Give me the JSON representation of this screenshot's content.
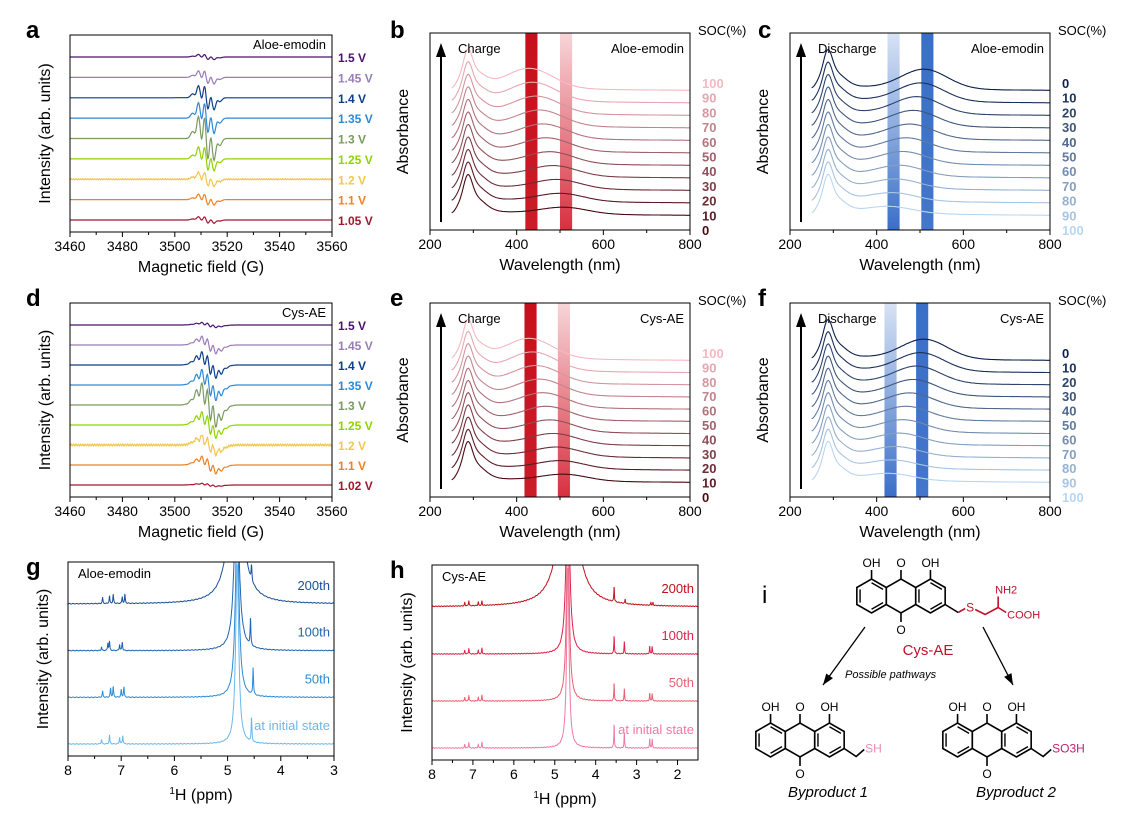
{
  "chart_data": [
    {
      "panel": "a",
      "type": "line",
      "subtype": "epr-stack",
      "title": "Aloe-emodin",
      "xlabel": "Magnetic field (G)",
      "ylabel": "Intensity (arb. units)",
      "xlim": [
        3460,
        3560
      ],
      "xticks": [
        "3460",
        "3480",
        "3500",
        "3520",
        "3540",
        "3560"
      ],
      "center_field": 3512,
      "hyperfine_lines": 5,
      "line_spacing_G": 2.2,
      "series": [
        {
          "name": "1.5 V",
          "color": "#4b136f",
          "amplitude": 0.12
        },
        {
          "name": "1.45 V",
          "color": "#9a7cb8",
          "amplitude": 0.3
        },
        {
          "name": "1.4 V",
          "color": "#0d3f8a",
          "amplitude": 0.55
        },
        {
          "name": "1.35 V",
          "color": "#2b8ad8",
          "amplitude": 0.7
        },
        {
          "name": "1.3 V",
          "color": "#7a9a60",
          "amplitude": 1.0
        },
        {
          "name": "1.25 V",
          "color": "#8fd400",
          "amplitude": 0.55
        },
        {
          "name": "1.2 V",
          "color": "#f0c850",
          "amplitude": 0.35
        },
        {
          "name": "1.1 V",
          "color": "#f08020",
          "amplitude": 0.25
        },
        {
          "name": "1.05 V",
          "color": "#a01830",
          "amplitude": 0.15
        }
      ]
    },
    {
      "panel": "b",
      "type": "line",
      "subtype": "uv-stack",
      "title": "Aloe-emodin",
      "annotation": "Charge",
      "legend_title": "SOC(%)",
      "xlabel": "Wavelength (nm)",
      "ylabel": "Absorbance",
      "xlim": [
        200,
        800
      ],
      "xticks": [
        "200",
        "400",
        "600",
        "800"
      ],
      "highlight_bands": [
        {
          "center_nm": 434,
          "width_nm": 28,
          "color": "#c8101c",
          "style": "solid"
        },
        {
          "center_nm": 514,
          "width_nm": 28,
          "color": "#d83040",
          "style": "fade"
        }
      ],
      "color_top": "#f6b9c2",
      "color_bottom": "#4a0a14",
      "soc": [
        "100",
        "90",
        "80",
        "70",
        "60",
        "50",
        "40",
        "30",
        "20",
        "10",
        "0"
      ],
      "soc_high_at": "top"
    },
    {
      "panel": "c",
      "type": "line",
      "subtype": "uv-stack",
      "title": "Aloe-emodin",
      "annotation": "Discharge",
      "legend_title": "SOC(%)",
      "xlabel": "Wavelength (nm)",
      "ylabel": "Absorbance",
      "xlim": [
        200,
        800
      ],
      "xticks": [
        "200",
        "400",
        "600",
        "800"
      ],
      "highlight_bands": [
        {
          "center_nm": 439,
          "width_nm": 28,
          "color": "#3a6fc8",
          "style": "fade"
        },
        {
          "center_nm": 517,
          "width_nm": 28,
          "color": "#3a6fc8",
          "style": "solid"
        }
      ],
      "color_top": "#0a1f4a",
      "color_bottom": "#b8d6f2",
      "soc": [
        "0",
        "10",
        "20",
        "30",
        "40",
        "50",
        "60",
        "70",
        "80",
        "90",
        "100"
      ],
      "soc_high_at": "bottom"
    },
    {
      "panel": "d",
      "type": "line",
      "subtype": "epr-stack",
      "title": "Cys-AE",
      "xlabel": "Magnetic field (G)",
      "ylabel": "Intensity (arb. units)",
      "xlim": [
        3460,
        3560
      ],
      "xticks": [
        "3460",
        "3480",
        "3500",
        "3520",
        "3540",
        "3560"
      ],
      "center_field": 3513,
      "hyperfine_lines": 9,
      "line_spacing_G": 2.0,
      "series": [
        {
          "name": "1.5 V",
          "color": "#4b136f",
          "amplitude": 0.12
        },
        {
          "name": "1.45 V",
          "color": "#9a7cb8",
          "amplitude": 0.4
        },
        {
          "name": "1.4 V",
          "color": "#0d3f8a",
          "amplitude": 0.6
        },
        {
          "name": "1.35 V",
          "color": "#2b8ad8",
          "amplitude": 0.7
        },
        {
          "name": "1.3 V",
          "color": "#7a9a60",
          "amplitude": 1.0
        },
        {
          "name": "1.25 V",
          "color": "#8fd400",
          "amplitude": 0.6
        },
        {
          "name": "1.2 V",
          "color": "#f0c850",
          "amplitude": 0.5
        },
        {
          "name": "1.1 V",
          "color": "#f08020",
          "amplitude": 0.4
        },
        {
          "name": "1.02 V",
          "color": "#a01830",
          "amplitude": 0.08
        }
      ]
    },
    {
      "panel": "e",
      "type": "line",
      "subtype": "uv-stack",
      "title": "Cys-AE",
      "annotation": "Charge",
      "legend_title": "SOC(%)",
      "xlabel": "Wavelength (nm)",
      "ylabel": "Absorbance",
      "xlim": [
        200,
        800
      ],
      "xticks": [
        "200",
        "400",
        "600",
        "800"
      ],
      "highlight_bands": [
        {
          "center_nm": 432,
          "width_nm": 28,
          "color": "#c8101c",
          "style": "solid"
        },
        {
          "center_nm": 509,
          "width_nm": 28,
          "color": "#d83040",
          "style": "fade"
        }
      ],
      "color_top": "#f6b9c2",
      "color_bottom": "#4a0a14",
      "soc": [
        "100",
        "90",
        "80",
        "70",
        "60",
        "50",
        "40",
        "30",
        "20",
        "10",
        "0"
      ],
      "soc_high_at": "top"
    },
    {
      "panel": "f",
      "type": "line",
      "subtype": "uv-stack",
      "title": "Cys-AE",
      "annotation": "Discharge",
      "legend_title": "SOC(%)",
      "xlabel": "Wavelength (nm)",
      "ylabel": "Absorbance",
      "xlim": [
        200,
        800
      ],
      "xticks": [
        "200",
        "400",
        "600",
        "800"
      ],
      "highlight_bands": [
        {
          "center_nm": 432,
          "width_nm": 28,
          "color": "#3a6fc8",
          "style": "fade"
        },
        {
          "center_nm": 505,
          "width_nm": 28,
          "color": "#3a6fc8",
          "style": "solid"
        }
      ],
      "color_top": "#0a1f4a",
      "color_bottom": "#b8d6f2",
      "soc": [
        "0",
        "10",
        "20",
        "30",
        "40",
        "50",
        "60",
        "70",
        "80",
        "90",
        "100"
      ],
      "soc_high_at": "bottom"
    },
    {
      "panel": "g",
      "type": "line",
      "subtype": "nmr-stack",
      "title": "Aloe-emodin",
      "xlabel_sup": "1",
      "xlabel": "H (ppm)",
      "ylabel": "Intensity (arb. units)",
      "xlim": [
        8,
        3
      ],
      "xticks": [
        "8",
        "7",
        "6",
        "5",
        "4",
        "3"
      ],
      "series": [
        {
          "name": "200th",
          "color": "#1a4f9a",
          "peaks": [
            [
              7.35,
              0.2
            ],
            [
              7.22,
              0.25
            ],
            [
              7.15,
              0.3
            ],
            [
              6.98,
              0.22
            ],
            [
              6.93,
              0.3
            ],
            [
              4.85,
              6
            ],
            [
              4.55,
              0.5
            ]
          ],
          "solvent_width": 0.12
        },
        {
          "name": "100th",
          "color": "#1f64b4",
          "peaks": [
            [
              7.37,
              0.12
            ],
            [
              7.25,
              0.25
            ],
            [
              7.22,
              0.3
            ],
            [
              7.03,
              0.2
            ],
            [
              6.98,
              0.28
            ],
            [
              4.83,
              6
            ],
            [
              4.57,
              0.9
            ]
          ],
          "solvent_width": 0.05
        },
        {
          "name": "50th",
          "color": "#2a8ad8",
          "peaks": [
            [
              7.35,
              0.2
            ],
            [
              7.2,
              0.3
            ],
            [
              7.15,
              0.35
            ],
            [
              7.0,
              0.25
            ],
            [
              6.95,
              0.35
            ],
            [
              4.82,
              6
            ],
            [
              4.52,
              0.9
            ]
          ],
          "solvent_width": 0.04
        },
        {
          "name": "at initial state",
          "color": "#6ab8ee",
          "peaks": [
            [
              7.37,
              0.15
            ],
            [
              7.22,
              0.3
            ],
            [
              7.03,
              0.22
            ],
            [
              6.97,
              0.28
            ],
            [
              4.82,
              6
            ],
            [
              4.55,
              0.8
            ]
          ],
          "solvent_width": 0.035
        }
      ]
    },
    {
      "panel": "h",
      "type": "line",
      "subtype": "nmr-stack",
      "title": "Cys-AE",
      "xlabel_sup": "1",
      "xlabel": "H (ppm)",
      "ylabel": "Intensity (arb. units)",
      "xlim": [
        8,
        1.5
      ],
      "xticks": [
        "8",
        "7",
        "6",
        "5",
        "4",
        "3",
        "2"
      ],
      "series": [
        {
          "name": "200th",
          "color": "#c0101a",
          "peaks": [
            [
              7.2,
              0.12
            ],
            [
              7.1,
              0.18
            ],
            [
              6.87,
              0.12
            ],
            [
              6.78,
              0.15
            ],
            [
              4.68,
              6
            ],
            [
              3.55,
              0.5
            ],
            [
              3.28,
              0.15
            ],
            [
              2.65,
              0.1
            ],
            [
              2.6,
              0.1
            ]
          ],
          "solvent_width": 0.2
        },
        {
          "name": "100th",
          "color": "#e0204a",
          "peaks": [
            [
              7.2,
              0.12
            ],
            [
              7.1,
              0.2
            ],
            [
              6.87,
              0.12
            ],
            [
              6.78,
              0.2
            ],
            [
              4.68,
              6
            ],
            [
              3.55,
              0.6
            ],
            [
              3.3,
              0.4
            ],
            [
              2.68,
              0.25
            ],
            [
              2.62,
              0.25
            ]
          ],
          "solvent_width": 0.05
        },
        {
          "name": "50th",
          "color": "#e86070",
          "peaks": [
            [
              7.2,
              0.12
            ],
            [
              7.1,
              0.2
            ],
            [
              6.87,
              0.12
            ],
            [
              6.78,
              0.2
            ],
            [
              4.68,
              6
            ],
            [
              3.55,
              0.6
            ],
            [
              3.3,
              0.4
            ],
            [
              2.68,
              0.25
            ],
            [
              2.62,
              0.25
            ]
          ],
          "solvent_width": 0.04
        },
        {
          "name": "at initial state",
          "color": "#f07aa0",
          "peaks": [
            [
              7.2,
              0.12
            ],
            [
              7.1,
              0.2
            ],
            [
              6.87,
              0.12
            ],
            [
              6.78,
              0.2
            ],
            [
              4.68,
              6
            ],
            [
              3.55,
              0.8
            ],
            [
              3.3,
              0.5
            ],
            [
              2.68,
              0.3
            ],
            [
              2.62,
              0.3
            ]
          ],
          "solvent_width": 0.035
        }
      ]
    }
  ],
  "diagram": {
    "panel": "i",
    "main": {
      "oh_left": "OH",
      "o_top": "O",
      "oh_right": "OH",
      "o_bottom": "O",
      "s": "S",
      "nh2": "NH2",
      "cooh": "COOH",
      "name": "Cys-AE",
      "color": "#c0102a"
    },
    "pathway_label": "Possible pathways",
    "byproduct1": {
      "oh_left": "OH",
      "o_top": "O",
      "oh_right": "OH",
      "o_bottom": "O",
      "group": "SH",
      "name": "Byproduct 1",
      "color": "#e88ab8"
    },
    "byproduct2": {
      "oh_left": "OH",
      "o_top": "O",
      "oh_right": "OH",
      "o_bottom": "O",
      "group": "SO3H",
      "name": "Byproduct 2",
      "color": "#c02070"
    }
  }
}
